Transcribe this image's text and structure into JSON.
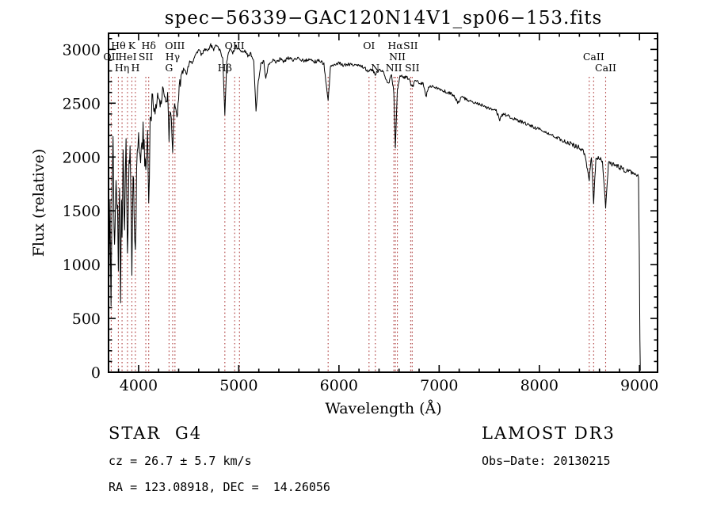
{
  "figure": {
    "annotations": {
      "class": "STAR",
      "subclass": "G4",
      "survey": "LAMOST DR3",
      "cz": "cz = 26.7 ± 5.7 km/s",
      "obs_date": "Obs−Date: 20130215",
      "radec": "RA = 123.08918, DEC =  14.26056"
    },
    "colors": {
      "spectrum": "#000000",
      "axis": "#000000",
      "line_marker": "#aa3333",
      "line_label": "#8b3030"
    }
  },
  "chart_data": {
    "type": "line",
    "title": "spec−56339−GAC120N14V1_sp06−153.fits",
    "xlabel": "Wavelength (Å)",
    "ylabel": "Flux (relative)",
    "xlim": [
      3700,
      9180
    ],
    "ylim": [
      0,
      3150
    ],
    "xticks": [
      4000,
      5000,
      6000,
      7000,
      8000,
      9000
    ],
    "yticks": [
      0,
      500,
      1000,
      1500,
      2000,
      2500,
      3000
    ],
    "x_minor_step": 200,
    "y_minor_step": 100,
    "grid": false,
    "legend": "none",
    "spectral_lines": [
      {
        "wl": 3727,
        "label": "OII",
        "row": 2
      },
      {
        "wl": 3798,
        "label": "Hθ",
        "row": 1
      },
      {
        "wl": 3835,
        "label": "Hη",
        "row": 3
      },
      {
        "wl": 3889,
        "label": "HeI",
        "row": 2
      },
      {
        "wl": 3933,
        "label": "K",
        "row": 1
      },
      {
        "wl": 3968,
        "label": "H",
        "row": 3
      },
      {
        "wl": 4072,
        "label": "SII",
        "row": 2
      },
      {
        "wl": 4101,
        "label": "Hδ",
        "row": 1
      },
      {
        "wl": 4304,
        "label": "G",
        "row": 3
      },
      {
        "wl": 4340,
        "label": "Hγ",
        "row": 2
      },
      {
        "wl": 4363,
        "label": "OIII",
        "row": 1
      },
      {
        "wl": 4861,
        "label": "Hβ",
        "row": 3
      },
      {
        "wl": 4959,
        "label": "OIII",
        "row": 1
      },
      {
        "wl": 5007,
        "label": "",
        "row": 0
      },
      {
        "wl": 5892,
        "label": "",
        "row": 0
      },
      {
        "wl": 6300,
        "label": "OI",
        "row": 1
      },
      {
        "wl": 6363,
        "label": "N",
        "row": 3
      },
      {
        "wl": 6548,
        "label": "NII",
        "row": 3
      },
      {
        "wl": 6563,
        "label": "Hα",
        "row": 1
      },
      {
        "wl": 6583,
        "label": "NII",
        "row": 2
      },
      {
        "wl": 6716,
        "label": "SII",
        "row": 1
      },
      {
        "wl": 6731,
        "label": "SII",
        "row": 3
      },
      {
        "wl": 8498,
        "label": "",
        "row": 0
      },
      {
        "wl": 8542,
        "label": "CaII",
        "row": 2
      },
      {
        "wl": 8662,
        "label": "CaII",
        "row": 3
      }
    ],
    "spectrum_anchors": [
      [
        3705,
        900
      ],
      [
        3715,
        1500
      ],
      [
        3725,
        700
      ],
      [
        3735,
        1600
      ],
      [
        3745,
        2100
      ],
      [
        3760,
        1100
      ],
      [
        3775,
        1900
      ],
      [
        3790,
        1500
      ],
      [
        3798,
        1050
      ],
      [
        3810,
        1750
      ],
      [
        3820,
        700
      ],
      [
        3830,
        1600
      ],
      [
        3835,
        1150
      ],
      [
        3845,
        2050
      ],
      [
        3860,
        1350
      ],
      [
        3875,
        2100
      ],
      [
        3889,
        1000
      ],
      [
        3900,
        1800
      ],
      [
        3915,
        2150
      ],
      [
        3933,
        900
      ],
      [
        3945,
        1850
      ],
      [
        3955,
        1550
      ],
      [
        3968,
        1050
      ],
      [
        3980,
        1800
      ],
      [
        4000,
        2200
      ],
      [
        4020,
        1950
      ],
      [
        4045,
        2250
      ],
      [
        4072,
        1800
      ],
      [
        4090,
        2250
      ],
      [
        4101,
        1500
      ],
      [
        4115,
        2350
      ],
      [
        4140,
        2550
      ],
      [
        4165,
        2400
      ],
      [
        4190,
        2600
      ],
      [
        4215,
        2450
      ],
      [
        4240,
        2620
      ],
      [
        4265,
        2520
      ],
      [
        4290,
        2580
      ],
      [
        4304,
        2200
      ],
      [
        4320,
        2450
      ],
      [
        4340,
        2080
      ],
      [
        4360,
        2520
      ],
      [
        4383,
        2350
      ],
      [
        4405,
        2650
      ],
      [
        4430,
        2750
      ],
      [
        4455,
        2820
      ],
      [
        4480,
        2780
      ],
      [
        4510,
        2900
      ],
      [
        4540,
        2870
      ],
      [
        4570,
        2960
      ],
      [
        4600,
        2990
      ],
      [
        4630,
        2950
      ],
      [
        4660,
        3010
      ],
      [
        4690,
        2980
      ],
      [
        4720,
        3040
      ],
      [
        4750,
        3000
      ],
      [
        4780,
        3040
      ],
      [
        4810,
        2990
      ],
      [
        4840,
        2920
      ],
      [
        4861,
        2380
      ],
      [
        4880,
        2890
      ],
      [
        4910,
        3000
      ],
      [
        4940,
        2960
      ],
      [
        4970,
        3030
      ],
      [
        5000,
        3000
      ],
      [
        5030,
        2970
      ],
      [
        5060,
        2990
      ],
      [
        5090,
        2940
      ],
      [
        5120,
        2960
      ],
      [
        5150,
        2880
      ],
      [
        5172,
        2430
      ],
      [
        5195,
        2700
      ],
      [
        5220,
        2860
      ],
      [
        5250,
        2890
      ],
      [
        5270,
        2720
      ],
      [
        5295,
        2860
      ],
      [
        5330,
        2900
      ],
      [
        5370,
        2880
      ],
      [
        5410,
        2910
      ],
      [
        5450,
        2890
      ],
      [
        5500,
        2920
      ],
      [
        5550,
        2900
      ],
      [
        5600,
        2915
      ],
      [
        5650,
        2895
      ],
      [
        5700,
        2905
      ],
      [
        5750,
        2885
      ],
      [
        5800,
        2895
      ],
      [
        5850,
        2865
      ],
      [
        5892,
        2520
      ],
      [
        5915,
        2840
      ],
      [
        5950,
        2865
      ],
      [
        6000,
        2875
      ],
      [
        6050,
        2855
      ],
      [
        6100,
        2865
      ],
      [
        6150,
        2845
      ],
      [
        6200,
        2855
      ],
      [
        6250,
        2835
      ],
      [
        6300,
        2790
      ],
      [
        6330,
        2820
      ],
      [
        6363,
        2770
      ],
      [
        6400,
        2805
      ],
      [
        6440,
        2790
      ],
      [
        6495,
        2680
      ],
      [
        6525,
        2770
      ],
      [
        6548,
        2600
      ],
      [
        6563,
        2080
      ],
      [
        6583,
        2620
      ],
      [
        6610,
        2750
      ],
      [
        6650,
        2745
      ],
      [
        6700,
        2730
      ],
      [
        6731,
        2640
      ],
      [
        6760,
        2710
      ],
      [
        6800,
        2695
      ],
      [
        6840,
        2680
      ],
      [
        6867,
        2560
      ],
      [
        6900,
        2655
      ],
      [
        6950,
        2645
      ],
      [
        7000,
        2635
      ],
      [
        7050,
        2615
      ],
      [
        7100,
        2595
      ],
      [
        7150,
        2575
      ],
      [
        7185,
        2500
      ],
      [
        7220,
        2555
      ],
      [
        7270,
        2540
      ],
      [
        7320,
        2520
      ],
      [
        7370,
        2505
      ],
      [
        7420,
        2485
      ],
      [
        7470,
        2465
      ],
      [
        7520,
        2445
      ],
      [
        7570,
        2425
      ],
      [
        7605,
        2350
      ],
      [
        7640,
        2400
      ],
      [
        7690,
        2380
      ],
      [
        7740,
        2360
      ],
      [
        7790,
        2340
      ],
      [
        7840,
        2320
      ],
      [
        7890,
        2300
      ],
      [
        7940,
        2280
      ],
      [
        7990,
        2260
      ],
      [
        8040,
        2240
      ],
      [
        8090,
        2220
      ],
      [
        8140,
        2200
      ],
      [
        8190,
        2175
      ],
      [
        8240,
        2150
      ],
      [
        8290,
        2130
      ],
      [
        8340,
        2110
      ],
      [
        8390,
        2090
      ],
      [
        8440,
        2070
      ],
      [
        8498,
        1800
      ],
      [
        8520,
        2010
      ],
      [
        8542,
        1580
      ],
      [
        8565,
        1990
      ],
      [
        8600,
        1985
      ],
      [
        8630,
        1965
      ],
      [
        8662,
        1530
      ],
      [
        8690,
        1945
      ],
      [
        8730,
        1935
      ],
      [
        8770,
        1915
      ],
      [
        8820,
        1895
      ],
      [
        8870,
        1875
      ],
      [
        8920,
        1855
      ],
      [
        8960,
        1840
      ],
      [
        8990,
        1830
      ],
      [
        8998,
        1100
      ],
      [
        9004,
        300
      ],
      [
        9008,
        15
      ]
    ],
    "render": {
      "seed": 7,
      "step": 6,
      "noise": [
        {
          "max": 4150,
          "amp": 120
        },
        {
          "max": 4450,
          "amp": 55
        },
        {
          "max": 8300,
          "amp": 16
        },
        {
          "max": 8995,
          "amp": 24
        },
        {
          "max": 10000,
          "amp": 0
        }
      ]
    }
  }
}
